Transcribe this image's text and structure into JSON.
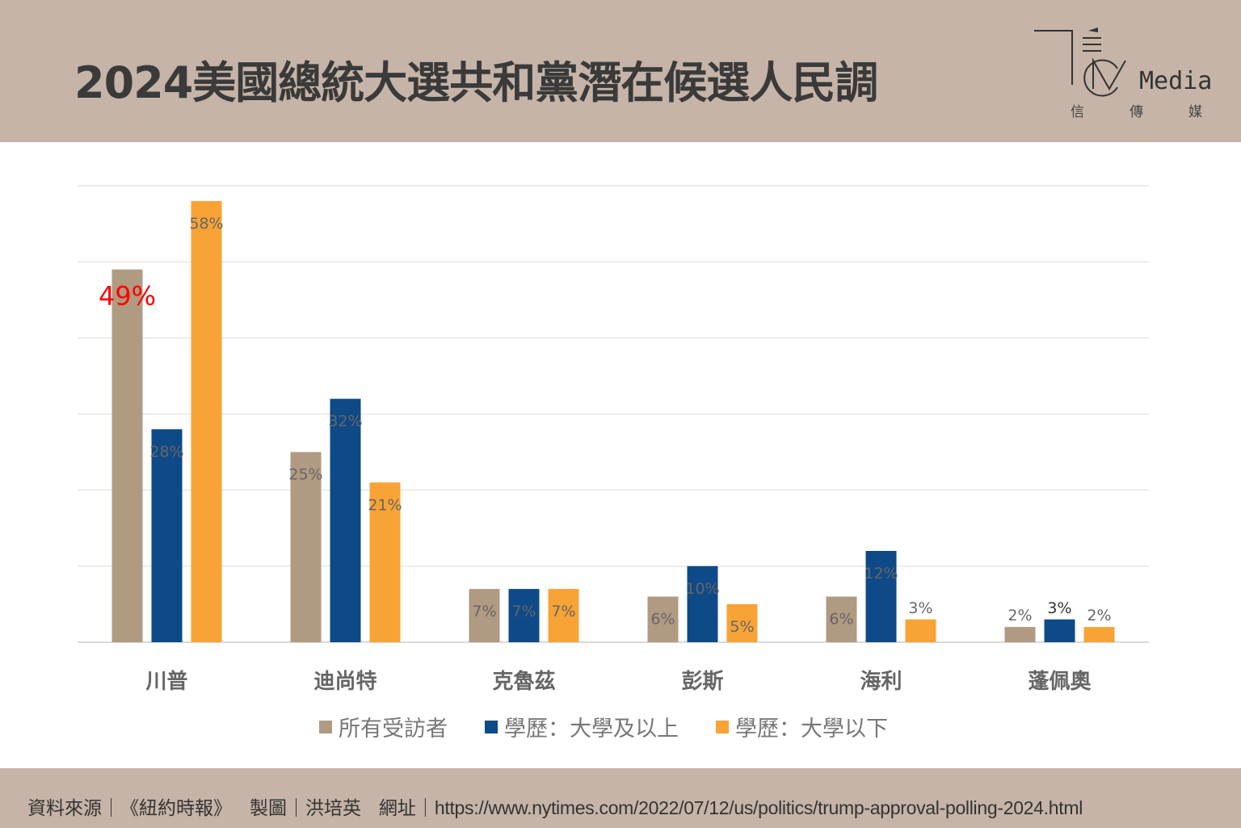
{
  "header": {
    "title": "2024美國總統大選共和黨潛在候選人民調",
    "logo_text": "Media",
    "logo_subtitle": [
      "信",
      "傳",
      "媒"
    ]
  },
  "footer": {
    "source_label": "資料來源｜",
    "source": "《紐約時報》",
    "maker_label": "製圖｜",
    "maker": "洪培英",
    "url_label": "網址｜",
    "url": "https://www.nytimes.com/2022/07/12/us/politics/trump-approval-polling-2024.html"
  },
  "chart_data": {
    "type": "bar",
    "title": "2024美國總統大選共和黨潛在候選人民調",
    "categories": [
      "川普",
      "迪尚特",
      "克魯茲",
      "彭斯",
      "海利",
      "蓬佩奧"
    ],
    "series": [
      {
        "name": "所有受訪者",
        "values": [
          49,
          25,
          7,
          6,
          6,
          2
        ],
        "color": "#b09a82"
      },
      {
        "name": "學歷：大學及以上",
        "values": [
          28,
          32,
          7,
          10,
          12,
          3
        ],
        "color": "#0e4a88"
      },
      {
        "name": "學歷：大學以下",
        "values": [
          58,
          21,
          7,
          5,
          3,
          2
        ],
        "color": "#f8a336"
      }
    ],
    "ylim": [
      0,
      60
    ],
    "ygrid_step": 10,
    "grid": true,
    "legend": "bottom",
    "xlabel": "",
    "ylabel": "",
    "highlight": {
      "series": 0,
      "index": 0,
      "color": "#ff0000"
    }
  }
}
